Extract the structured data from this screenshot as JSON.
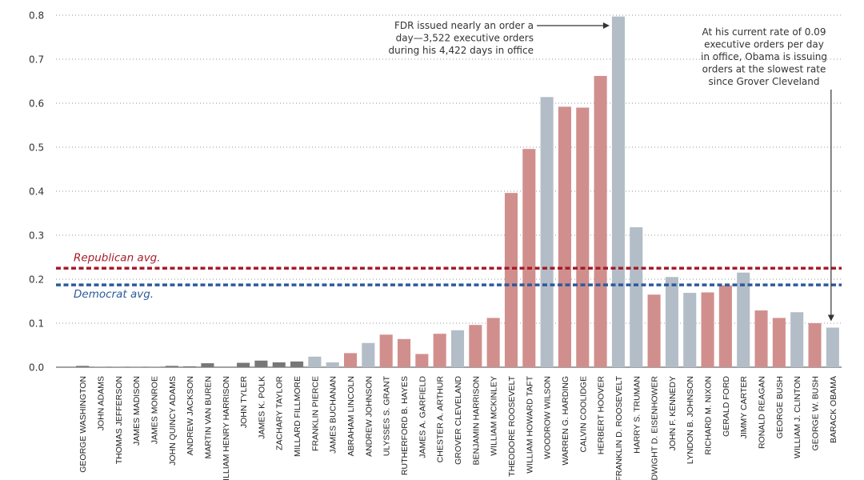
{
  "chart_data": {
    "type": "bar",
    "ylim": [
      0,
      0.8
    ],
    "yticks": [
      "0.0",
      "0.1",
      "0.2",
      "0.3",
      "0.4",
      "0.5",
      "0.6",
      "0.7",
      "0.8"
    ],
    "categories": [
      "GEORGE WASHINGTON",
      "JOHN ADAMS",
      "THOMAS JEFFERSON",
      "JAMES MADISON",
      "JAMES MONROE",
      "JOHN QUINCY ADAMS",
      "ANDREW JACKSON",
      "MARTIN VAN BUREN",
      "WILLIAM HENRY HARRISON",
      "JOHN TYLER",
      "JAMES K. POLK",
      "ZACHARY TAYLOR",
      "MILLARD FILLMORE",
      "FRANKLIN PIERCE",
      "JAMES BUCHANAN",
      "ABRAHAM LINCOLN",
      "ANDREW JOHNSON",
      "ULYSSES S. GRANT",
      "RUTHERFORD B. HAYES",
      "JAMES A. GARFIELD",
      "CHESTER A. ARTHUR",
      "GROVER CLEVELAND",
      "BENJAMIN HARRISON",
      "WILLIAM MCKINLEY",
      "THEODORE ROOSEVELT",
      "WILLIAM HOWARD TAFT",
      "WOODROW WILSON",
      "WARREN G. HARDING",
      "CALVIN COOLIDGE",
      "HERBERT HOOVER",
      "FRANKLIN D. ROOSEVELT",
      "HARRY S. TRUMAN",
      "DWIGHT D. EISENHOWER",
      "JOHN F. KENNEDY",
      "LYNDON B. JOHNSON",
      "RICHARD M. NIXON",
      "GERALD FORD",
      "JIMMY CARTER",
      "RONALD REAGAN",
      "GEORGE BUSH",
      "WILLIAM J. CLINTON",
      "GEORGE W. BUSH",
      "BARACK OBAMA"
    ],
    "values": [
      0.003,
      0.001,
      0.001,
      0.001,
      0.001,
      0.003,
      0.002,
      0.009,
      0.0,
      0.01,
      0.015,
      0.011,
      0.013,
      0.024,
      0.011,
      0.032,
      0.055,
      0.074,
      0.064,
      0.03,
      0.076,
      0.084,
      0.096,
      0.112,
      0.396,
      0.496,
      0.614,
      0.592,
      0.59,
      0.662,
      0.797,
      0.318,
      0.165,
      0.205,
      0.169,
      0.17,
      0.186,
      0.215,
      0.129,
      0.112,
      0.125,
      0.1,
      0.09
    ],
    "party": [
      "other",
      "other",
      "other",
      "other",
      "other",
      "other",
      "other",
      "other",
      "other",
      "other",
      "other",
      "other",
      "other",
      "democrat",
      "democrat",
      "republican",
      "democrat",
      "republican",
      "republican",
      "republican",
      "republican",
      "democrat",
      "republican",
      "republican",
      "republican",
      "republican",
      "democrat",
      "republican",
      "republican",
      "republican",
      "democrat",
      "democrat",
      "republican",
      "democrat",
      "democrat",
      "republican",
      "republican",
      "democrat",
      "republican",
      "republican",
      "democrat",
      "republican",
      "democrat"
    ],
    "colors": {
      "republican": "#d08f8d",
      "democrat": "#b3bdc7",
      "other": "#777777",
      "republican_line": "#a51c2c",
      "democrat_line": "#2c5a9c",
      "annotation_arrow": "#333333"
    },
    "reference_lines": [
      {
        "name": "Republican avg.",
        "value": 0.225,
        "party": "republican"
      },
      {
        "name": "Democrat avg.",
        "value": 0.187,
        "party": "democrat"
      }
    ],
    "annotations": [
      {
        "lines": [
          "FDR issued nearly an order a",
          "day—3,522 executive orders",
          "during his 4,422 days in office"
        ],
        "target": "FRANKLIN D. ROOSEVELT"
      },
      {
        "lines": [
          "At his current rate of 0.09",
          "executive orders per day",
          "in office, Obama is issuing",
          "orders at the slowest rate",
          "since Grover Cleveland"
        ],
        "target": "BARACK OBAMA"
      }
    ]
  }
}
